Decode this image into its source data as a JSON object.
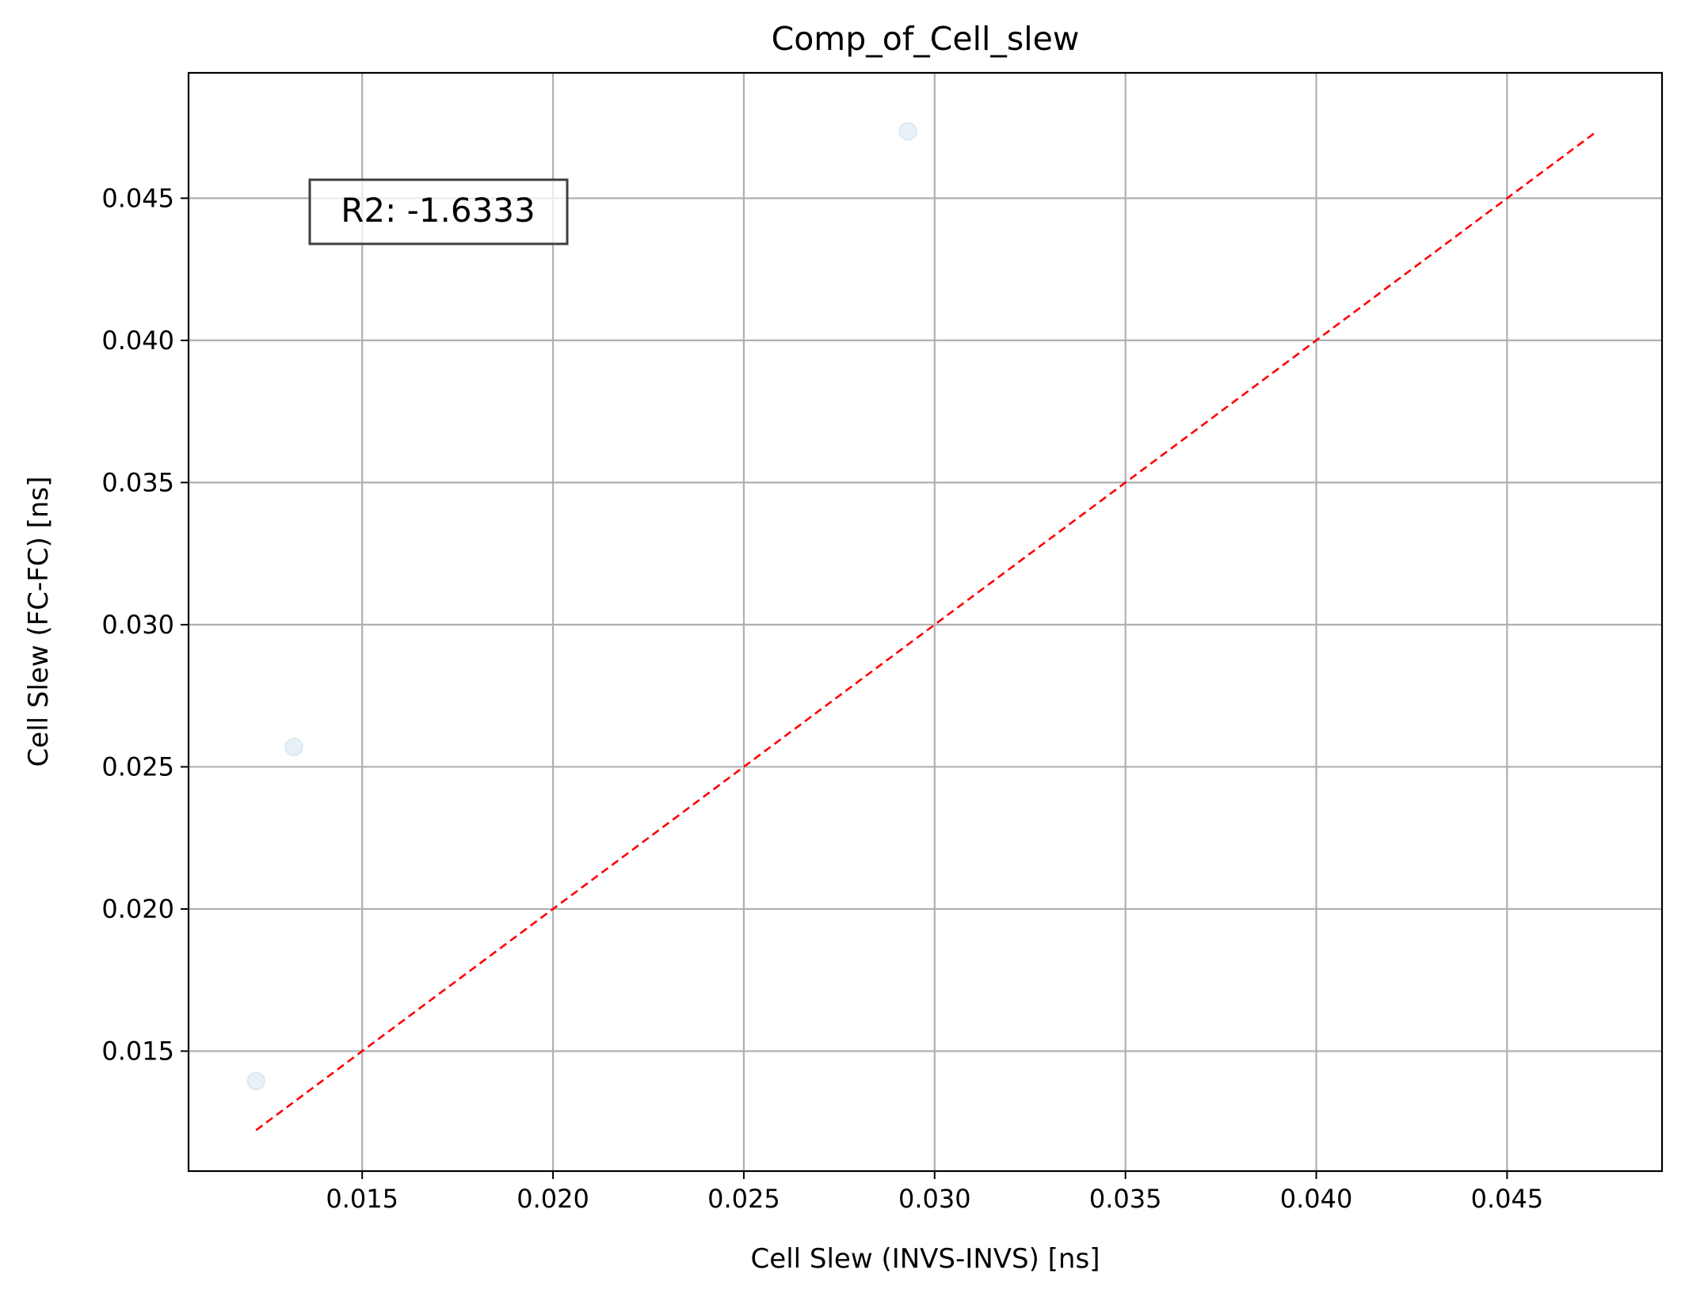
{
  "chart_data": {
    "type": "scatter",
    "title": "Comp_of_Cell_slew",
    "xlabel": "Cell Slew (INVS-INVS) [ns]",
    "ylabel": "Cell Slew (FC-FC) [ns]",
    "xlim": [
      0.01045,
      0.04906
    ],
    "ylim": [
      0.01078,
      0.04941
    ],
    "xticks": [
      0.015,
      0.02,
      0.025,
      0.03,
      0.035,
      0.04,
      0.045
    ],
    "xtick_labels": [
      "0.015",
      "0.020",
      "0.025",
      "0.030",
      "0.035",
      "0.040",
      "0.045"
    ],
    "yticks": [
      0.015,
      0.02,
      0.025,
      0.03,
      0.035,
      0.04,
      0.045
    ],
    "ytick_labels": [
      "0.015",
      "0.020",
      "0.025",
      "0.030",
      "0.035",
      "0.040",
      "0.045"
    ],
    "grid": true,
    "points": [
      {
        "x": 0.01222,
        "y": 0.01395
      },
      {
        "x": 0.01321,
        "y": 0.0257
      },
      {
        "x": 0.0293,
        "y": 0.04735
      }
    ],
    "reference_line": {
      "x": [
        0.01222,
        0.04735
      ],
      "y": [
        0.01222,
        0.04735
      ],
      "style": "dashed"
    },
    "annotation": "R2: -1.6333",
    "colors": {
      "points": "#1f77b4",
      "reference_line": "#ff0000",
      "grid": "#b0b0b0",
      "axes": "#000000"
    }
  }
}
